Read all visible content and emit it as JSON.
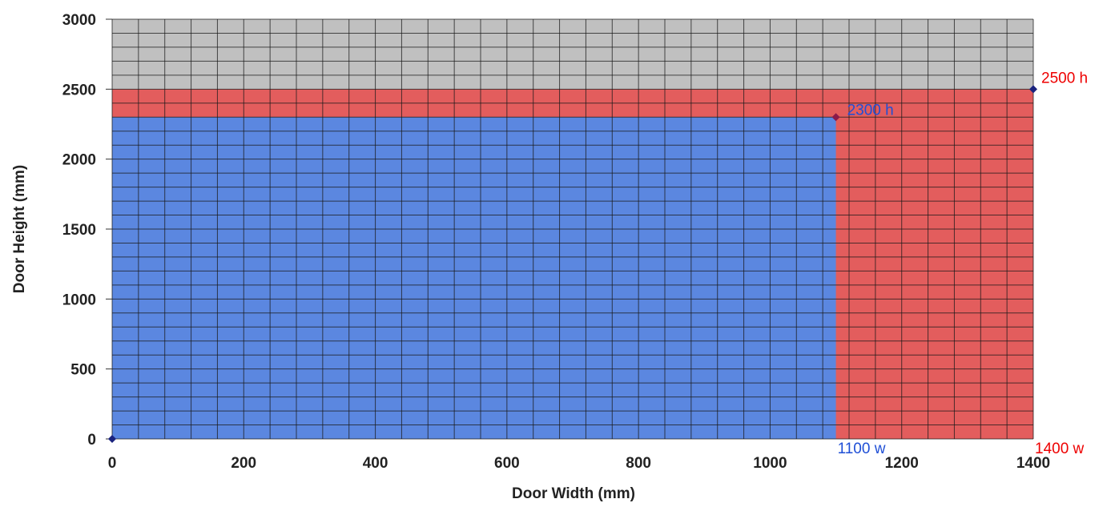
{
  "chart_data": {
    "type": "area",
    "title": "",
    "xlabel": "Door Width (mm)",
    "ylabel": "Door Height (mm)",
    "xlim": [
      0,
      1400
    ],
    "ylim": [
      0,
      3000
    ],
    "x_ticks": [
      0,
      200,
      400,
      600,
      800,
      1000,
      1200,
      1400
    ],
    "y_ticks": [
      0,
      500,
      1000,
      1500,
      2000,
      2500,
      3000
    ],
    "x_tick_labels": [
      "0",
      "200",
      "400",
      "600",
      "800",
      "1000",
      "1200",
      "1400"
    ],
    "y_tick_labels": [
      "0",
      "500",
      "1000",
      "1500",
      "2000",
      "2500",
      "3000"
    ],
    "grid": true,
    "minor_grid_step_x": 40,
    "minor_grid_step_y": 100,
    "background_color": "#c0c0c0",
    "grid_color": "#1a1a1a",
    "regions": [
      {
        "x_max": 1400,
        "y_max": 2500,
        "color": "#e35d5d"
      },
      {
        "x_max": 1100,
        "y_max": 2300,
        "color": "#5b87e0"
      }
    ],
    "points": [
      {
        "x": 0,
        "y": 0,
        "color": "#1a237e"
      },
      {
        "x": 1100,
        "y": 2300,
        "color": "#8b1a4a"
      },
      {
        "x": 1400,
        "y": 2500,
        "color": "#1a237e"
      }
    ],
    "annotations": [
      {
        "text": "2500 h",
        "x": 1400,
        "y": 2500,
        "color": "#ee0000",
        "anchor": "upper-right"
      },
      {
        "text": "2300 h",
        "x": 1100,
        "y": 2300,
        "color": "#1f4fd6",
        "anchor": "right"
      },
      {
        "text": "1100 w",
        "x": 1100,
        "y": 0,
        "color": "#1f4fd6",
        "anchor": "below"
      },
      {
        "text": "1400 w",
        "x": 1400,
        "y": 0,
        "color": "#ee0000",
        "anchor": "below"
      }
    ]
  }
}
